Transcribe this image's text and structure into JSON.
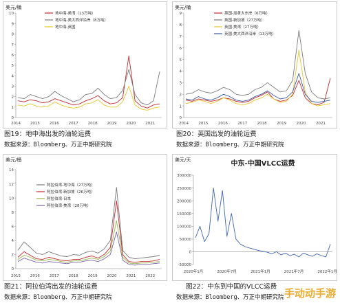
{
  "chart_data": [
    {
      "id": "c1",
      "type": "line",
      "ylabel": "美元/桶",
      "ylim": [
        0,
        10
      ],
      "yticks": [
        "0",
        "1",
        "2",
        "3",
        "4",
        "5",
        "6",
        "7",
        "8",
        "9",
        "10"
      ],
      "xticks": [
        "2014",
        "2015",
        "2016",
        "2017",
        "2018",
        "2019",
        "2020",
        "2021"
      ],
      "legend_position": "top-left",
      "series": [
        {
          "name": "地中海-美湾（13万吨）",
          "color": "#c0282d",
          "values": [
            1.6,
            1.5,
            1.7,
            1.6,
            1.4,
            1.5,
            1.8,
            1.6,
            1.4,
            1.2,
            1.3,
            1.6,
            1.8,
            2.1,
            1.6,
            1.3,
            1.4,
            1.9,
            5.9,
            1.6,
            1.1,
            0.9,
            1.2,
            1.3
          ]
        },
        {
          "name": "地中海-美大西洋沿岸（8万吨）",
          "color": "#7a7a7a",
          "values": [
            1.9,
            1.8,
            2.2,
            2.0,
            1.8,
            2.0,
            2.5,
            2.1,
            1.8,
            1.5,
            1.7,
            2.2,
            2.3,
            2.8,
            2.2,
            1.8,
            1.9,
            2.6,
            4.6,
            2.2,
            1.4,
            1.2,
            1.6,
            4.4
          ]
        },
        {
          "name": "地中海-英国",
          "color": "#e8c52b",
          "values": [
            1.2,
            1.1,
            1.3,
            1.1,
            1.0,
            1.1,
            1.5,
            1.2,
            1.0,
            0.9,
            1.0,
            1.3,
            1.4,
            1.7,
            1.2,
            1.0,
            1.0,
            1.5,
            3.0,
            1.2,
            0.8,
            0.7,
            0.9,
            1.0
          ]
        }
      ]
    },
    {
      "id": "c2",
      "type": "line",
      "ylabel": "美元/桶",
      "ylim": [
        0,
        9
      ],
      "yticks": [
        "0",
        "1",
        "2",
        "3",
        "4",
        "5",
        "6",
        "7",
        "8",
        "9"
      ],
      "xticks": [
        "2014",
        "2015",
        "2016",
        "2017",
        "2018",
        "2019",
        "2020",
        "2021"
      ],
      "legend_position": "top-left",
      "series": [
        {
          "name": "英国-加拿大东岸（6万吨）",
          "color": "#c0282d",
          "values": [
            1.5,
            1.4,
            1.6,
            1.5,
            1.4,
            1.5,
            1.7,
            1.6,
            1.4,
            1.3,
            1.4,
            1.7,
            1.9,
            2.2,
            1.6,
            1.4,
            1.5,
            1.9,
            3.2,
            1.7,
            1.2,
            1.1,
            1.3,
            3.4
          ]
        },
        {
          "name": "英国-新加坡（27万吨）",
          "color": "#7a7a7a",
          "values": [
            2.0,
            2.1,
            2.4,
            2.2,
            2.1,
            2.3,
            2.6,
            2.4,
            2.0,
            1.9,
            2.0,
            2.4,
            2.6,
            3.0,
            2.6,
            2.2,
            2.3,
            3.2,
            7.5,
            3.8,
            2.2,
            1.7,
            1.6,
            1.7
          ]
        },
        {
          "name": "英国-美湾（27万吨）",
          "color": "#e8c52b",
          "values": [
            1.2,
            1.3,
            1.5,
            1.4,
            1.2,
            1.4,
            1.7,
            1.5,
            1.2,
            1.1,
            1.2,
            1.5,
            1.7,
            2.0,
            1.6,
            1.3,
            1.4,
            2.0,
            5.8,
            2.2,
            1.2,
            1.0,
            1.1,
            1.2
          ]
        },
        {
          "name": "英国-美大西洋沿岸（13万吨）",
          "color": "#3c5aa8",
          "values": [
            1.6,
            1.5,
            1.8,
            1.6,
            1.5,
            1.7,
            2.0,
            1.8,
            1.5,
            1.4,
            1.5,
            1.8,
            2.0,
            2.3,
            1.9,
            1.6,
            1.7,
            2.2,
            3.8,
            2.0,
            1.4,
            1.3,
            1.4,
            1.5
          ]
        }
      ]
    },
    {
      "id": "c3",
      "type": "line",
      "ylabel": "美元/桶",
      "ylim": [
        0,
        14
      ],
      "yticks": [
        "0",
        "2",
        "4",
        "6",
        "8",
        "10",
        "12",
        "14"
      ],
      "xticks": [
        "2015",
        "2016",
        "2017",
        "2018",
        "2019",
        "2020",
        "2021",
        "2022"
      ],
      "legend_position": "top-left",
      "series": [
        {
          "name": "阿拉伯湾-地中海（27万吨）",
          "color": "#7a7a7a",
          "values": [
            2.6,
            3.8,
            3.0,
            2.2,
            2.0,
            2.4,
            2.1,
            1.8,
            1.7,
            2.0,
            1.9,
            2.3,
            2.5,
            2.2,
            2.8,
            4.0,
            11.5,
            2.6,
            1.6,
            1.4,
            1.5,
            1.6,
            1.7,
            1.9
          ]
        },
        {
          "name": "阿拉伯湾-新加坡（26万吨）",
          "color": "#c0282d",
          "values": [
            1.6,
            2.4,
            1.9,
            1.4,
            1.3,
            1.6,
            1.4,
            1.2,
            1.1,
            1.3,
            1.3,
            1.6,
            1.8,
            1.5,
            2.0,
            3.0,
            9.6,
            2.0,
            1.0,
            0.9,
            1.0,
            1.0,
            1.1,
            1.3
          ]
        },
        {
          "name": "阿拉伯湾-日本",
          "color": "#9ab54a",
          "values": [
            1.3,
            1.9,
            1.6,
            1.2,
            1.1,
            1.3,
            1.2,
            1.0,
            0.9,
            1.1,
            1.1,
            1.3,
            1.5,
            1.3,
            1.7,
            2.5,
            6.8,
            1.6,
            0.8,
            0.7,
            0.8,
            0.8,
            0.9,
            1.0
          ]
        },
        {
          "name": "阿拉伯湾-美湾（28万吨）",
          "color": "#7b63a8",
          "values": [
            1.0,
            1.5,
            1.2,
            0.9,
            0.8,
            1.0,
            0.9,
            0.8,
            0.7,
            0.9,
            0.9,
            1.1,
            1.2,
            1.0,
            1.4,
            2.0,
            5.2,
            1.2,
            0.6,
            0.5,
            0.6,
            0.6,
            0.7,
            0.8
          ]
        }
      ]
    },
    {
      "id": "c4",
      "type": "line",
      "title": "中东-中国VLCC运费",
      "ylabel": "美元/天",
      "ylim": [
        -50000,
        300000
      ],
      "yticks": [
        "-50000",
        "0",
        "50000",
        "100000",
        "150000",
        "200000",
        "250000",
        "300000"
      ],
      "xticks": [
        "2020年1月",
        "2020年7月",
        "2021年1月",
        "2021年7月",
        "2022年1月"
      ],
      "series": [
        {
          "name": "中东-中国VLCC",
          "color": "#3c64b4",
          "values": [
            55000,
            100000,
            40000,
            70000,
            250000,
            120000,
            240000,
            60000,
            150000,
            50000,
            30000,
            20000,
            15000,
            10000,
            5000,
            2000,
            -2000,
            -8000,
            0,
            -12000,
            -5000,
            -15000,
            -10000,
            -20000,
            -5000,
            -12000,
            -18000,
            -8000,
            -15000,
            -20000,
            30000
          ]
        }
      ]
    }
  ],
  "captions": {
    "fig19": "图19：地中海出发的油轮运费",
    "fig20": "图20：英国出发的油轮运费",
    "fig21": "图21：阿拉伯湾出发的油轮运费",
    "fig22": "图22：中东到中国的VLCC运费",
    "source": "数据来源：Bloomberg、万正中期研究院"
  },
  "watermark": "手动动手游"
}
